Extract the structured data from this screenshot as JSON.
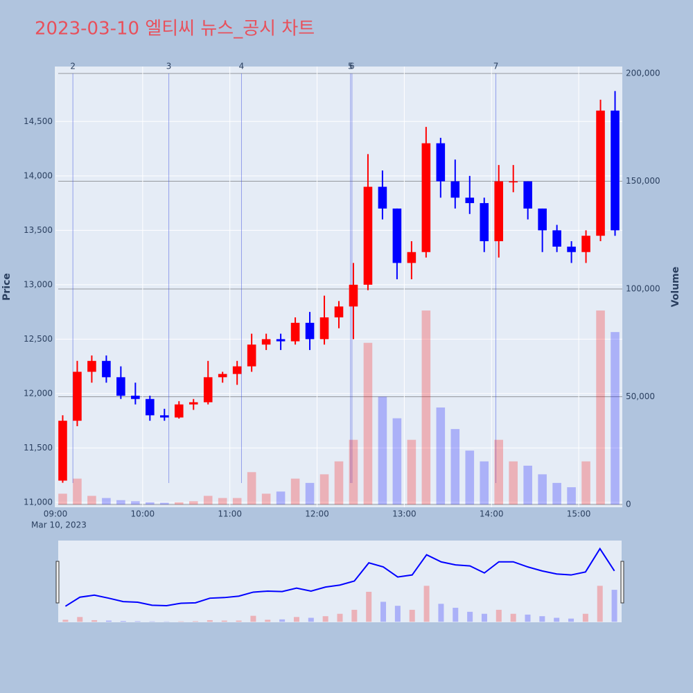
{
  "chart_data": {
    "type": "candlestick",
    "title": "2023-03-10 엘티씨 뉴스_공시 차트",
    "y_title": "Price",
    "y2_title": "Volume",
    "x_date_label": "Mar 10, 2023",
    "x": [
      "09:05",
      "09:15",
      "09:25",
      "09:35",
      "09:45",
      "09:55",
      "10:05",
      "10:15",
      "10:25",
      "10:35",
      "10:45",
      "10:55",
      "11:05",
      "11:15",
      "11:25",
      "11:35",
      "11:45",
      "11:55",
      "12:05",
      "12:15",
      "12:25",
      "12:35",
      "12:45",
      "12:55",
      "13:05",
      "13:15",
      "13:25",
      "13:35",
      "13:45",
      "13:55",
      "14:05",
      "14:15",
      "14:25",
      "14:35",
      "14:45",
      "14:55",
      "15:05",
      "15:15",
      "15:25"
    ],
    "open": [
      11200,
      11750,
      12200,
      12300,
      12150,
      11980,
      11950,
      11800,
      11780,
      11900,
      11920,
      12150,
      12180,
      12250,
      12450,
      12500,
      12480,
      12650,
      12500,
      12700,
      12800,
      13000,
      13900,
      13700,
      13200,
      13300,
      14300,
      13950,
      13800,
      13750,
      13400,
      13950,
      13950,
      13700,
      13500,
      13350,
      13300,
      13450,
      14600
    ],
    "high": [
      11800,
      12300,
      12350,
      12350,
      12250,
      12100,
      11980,
      11860,
      11930,
      11950,
      12300,
      12200,
      12300,
      12550,
      12550,
      12550,
      12700,
      12750,
      12900,
      12850,
      13200,
      14200,
      14050,
      13700,
      13400,
      14450,
      14350,
      14150,
      14000,
      13800,
      14100,
      14100,
      13950,
      13700,
      13550,
      13400,
      13500,
      14700,
      14780
    ],
    "low": [
      11180,
      11700,
      12100,
      12100,
      11950,
      11900,
      11750,
      11750,
      11770,
      11850,
      11900,
      12100,
      12080,
      12200,
      12400,
      12400,
      12450,
      12400,
      12450,
      12600,
      12500,
      12950,
      13600,
      13050,
      13050,
      13250,
      13800,
      13700,
      13650,
      13300,
      13250,
      13850,
      13600,
      13300,
      13300,
      13200,
      13200,
      13400,
      13450
    ],
    "close": [
      11750,
      12200,
      12300,
      12150,
      11980,
      11950,
      11800,
      11780,
      11900,
      11920,
      12150,
      12180,
      12250,
      12450,
      12500,
      12480,
      12650,
      12500,
      12700,
      12800,
      13000,
      13900,
      13700,
      13200,
      13300,
      14300,
      13950,
      13800,
      13750,
      13400,
      13950,
      13950,
      13700,
      13500,
      13350,
      13300,
      13450,
      14600,
      13500
    ],
    "volume": [
      5000,
      12000,
      4000,
      3000,
      2000,
      1500,
      1000,
      800,
      1000,
      1500,
      4000,
      3000,
      3000,
      15000,
      5000,
      6000,
      12000,
      10000,
      14000,
      20000,
      30000,
      75000,
      50000,
      40000,
      30000,
      90000,
      45000,
      35000,
      25000,
      20000,
      30000,
      20000,
      18000,
      14000,
      10000,
      8000,
      20000,
      90000,
      80000
    ],
    "up_color": "#ff0000",
    "down_color": "#0000ff",
    "ylim": [
      10955,
      15005
    ],
    "yticks": [
      {
        "value": 11000,
        "label": "11,000"
      },
      {
        "value": 11500,
        "label": "11,500"
      },
      {
        "value": 12000,
        "label": "12,000"
      },
      {
        "value": 12500,
        "label": "12,500"
      },
      {
        "value": 13000,
        "label": "13,000"
      },
      {
        "value": 13500,
        "label": "13,500"
      },
      {
        "value": 14000,
        "label": "14,000"
      },
      {
        "value": 14500,
        "label": "14,500"
      }
    ],
    "y2lim": [
      -1300,
      203200
    ],
    "y2ticks": [
      0,
      {
        "value": 50000,
        "label": "50,000"
      },
      {
        "value": 100000,
        "label": "100,000"
      },
      {
        "value": 150000,
        "label": "150,000"
      },
      {
        "value": 200000,
        "label": "200,000"
      }
    ],
    "xlim": [
      "09:00",
      "15:30"
    ],
    "xticks": [
      "09:00",
      "10:00",
      "11:00",
      "12:00",
      "13:00",
      "14:00",
      "15:00"
    ],
    "annotations": [
      {
        "label": "2",
        "x": "09:12"
      },
      {
        "label": "3",
        "x": "10:18"
      },
      {
        "label": "4",
        "x": "11:08"
      },
      {
        "label": "5",
        "x": "12:23"
      },
      {
        "label": "6",
        "x": "12:24"
      },
      {
        "label": "7",
        "x": "14:03"
      }
    ]
  }
}
